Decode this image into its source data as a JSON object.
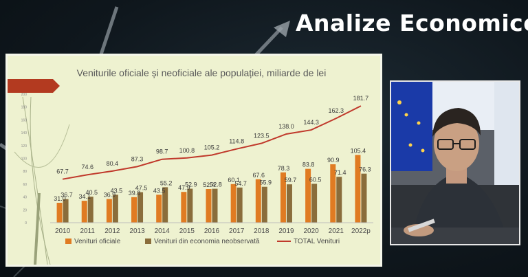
{
  "show": {
    "title": "Analize Economice"
  },
  "chart_data": {
    "type": "bar",
    "title": "Veniturile oficiale și neoficiale ale populației, miliarde de lei",
    "categories": [
      "2010",
      "2011",
      "2012",
      "2013",
      "2014",
      "2015",
      "2016",
      "2017",
      "2018",
      "2019",
      "2020",
      "2021",
      "2022p"
    ],
    "series": [
      {
        "name": "Venituri oficiale",
        "type": "bar",
        "color": "#e07b22",
        "values": [
          31.0,
          34.1,
          36.9,
          39.8,
          43.5,
          47.9,
          52.4,
          60.1,
          67.6,
          78.3,
          83.8,
          90.9,
          105.4
        ]
      },
      {
        "name": "Venituri din economia neobservată",
        "type": "bar",
        "color": "#8a6d3b",
        "values": [
          36.7,
          40.5,
          43.5,
          47.5,
          55.2,
          52.9,
          52.8,
          54.7,
          55.9,
          59.7,
          60.5,
          71.4,
          76.3
        ]
      },
      {
        "name": "TOTAL Venituri",
        "type": "line",
        "color": "#c0392b",
        "values": [
          67.7,
          74.6,
          80.4,
          87.3,
          98.7,
          100.8,
          105.2,
          114.8,
          123.5,
          138.0,
          144.3,
          162.3,
          181.7
        ]
      }
    ],
    "ylim": [
      0,
      200
    ],
    "yticks": [
      "0",
      "20",
      "40",
      "60",
      "80",
      "100",
      "120",
      "140",
      "160",
      "180",
      "200"
    ],
    "line_labels": [
      "67.7",
      "74.6",
      "80.4",
      "87.3",
      "98.7",
      "100.8",
      "105.2",
      "114.8",
      "123.5",
      "138.0",
      "144.3",
      "162.3",
      "181.7"
    ],
    "official_labels": [
      "31.0",
      "34.1",
      "36.9",
      "39.8",
      "43.5",
      "47.9",
      "52.4",
      "60.1",
      "67.6",
      "78.3",
      "83.8",
      "90.9",
      "105.4"
    ],
    "unobserved_labels": [
      "36.7",
      "40.5",
      "43.5",
      "47.5",
      "55.2",
      "52.9",
      "52.8",
      "54.7",
      "55.9",
      "59.7",
      "60.5",
      "71.4",
      "76.3"
    ],
    "legend_position": "bottom",
    "grid": false
  }
}
